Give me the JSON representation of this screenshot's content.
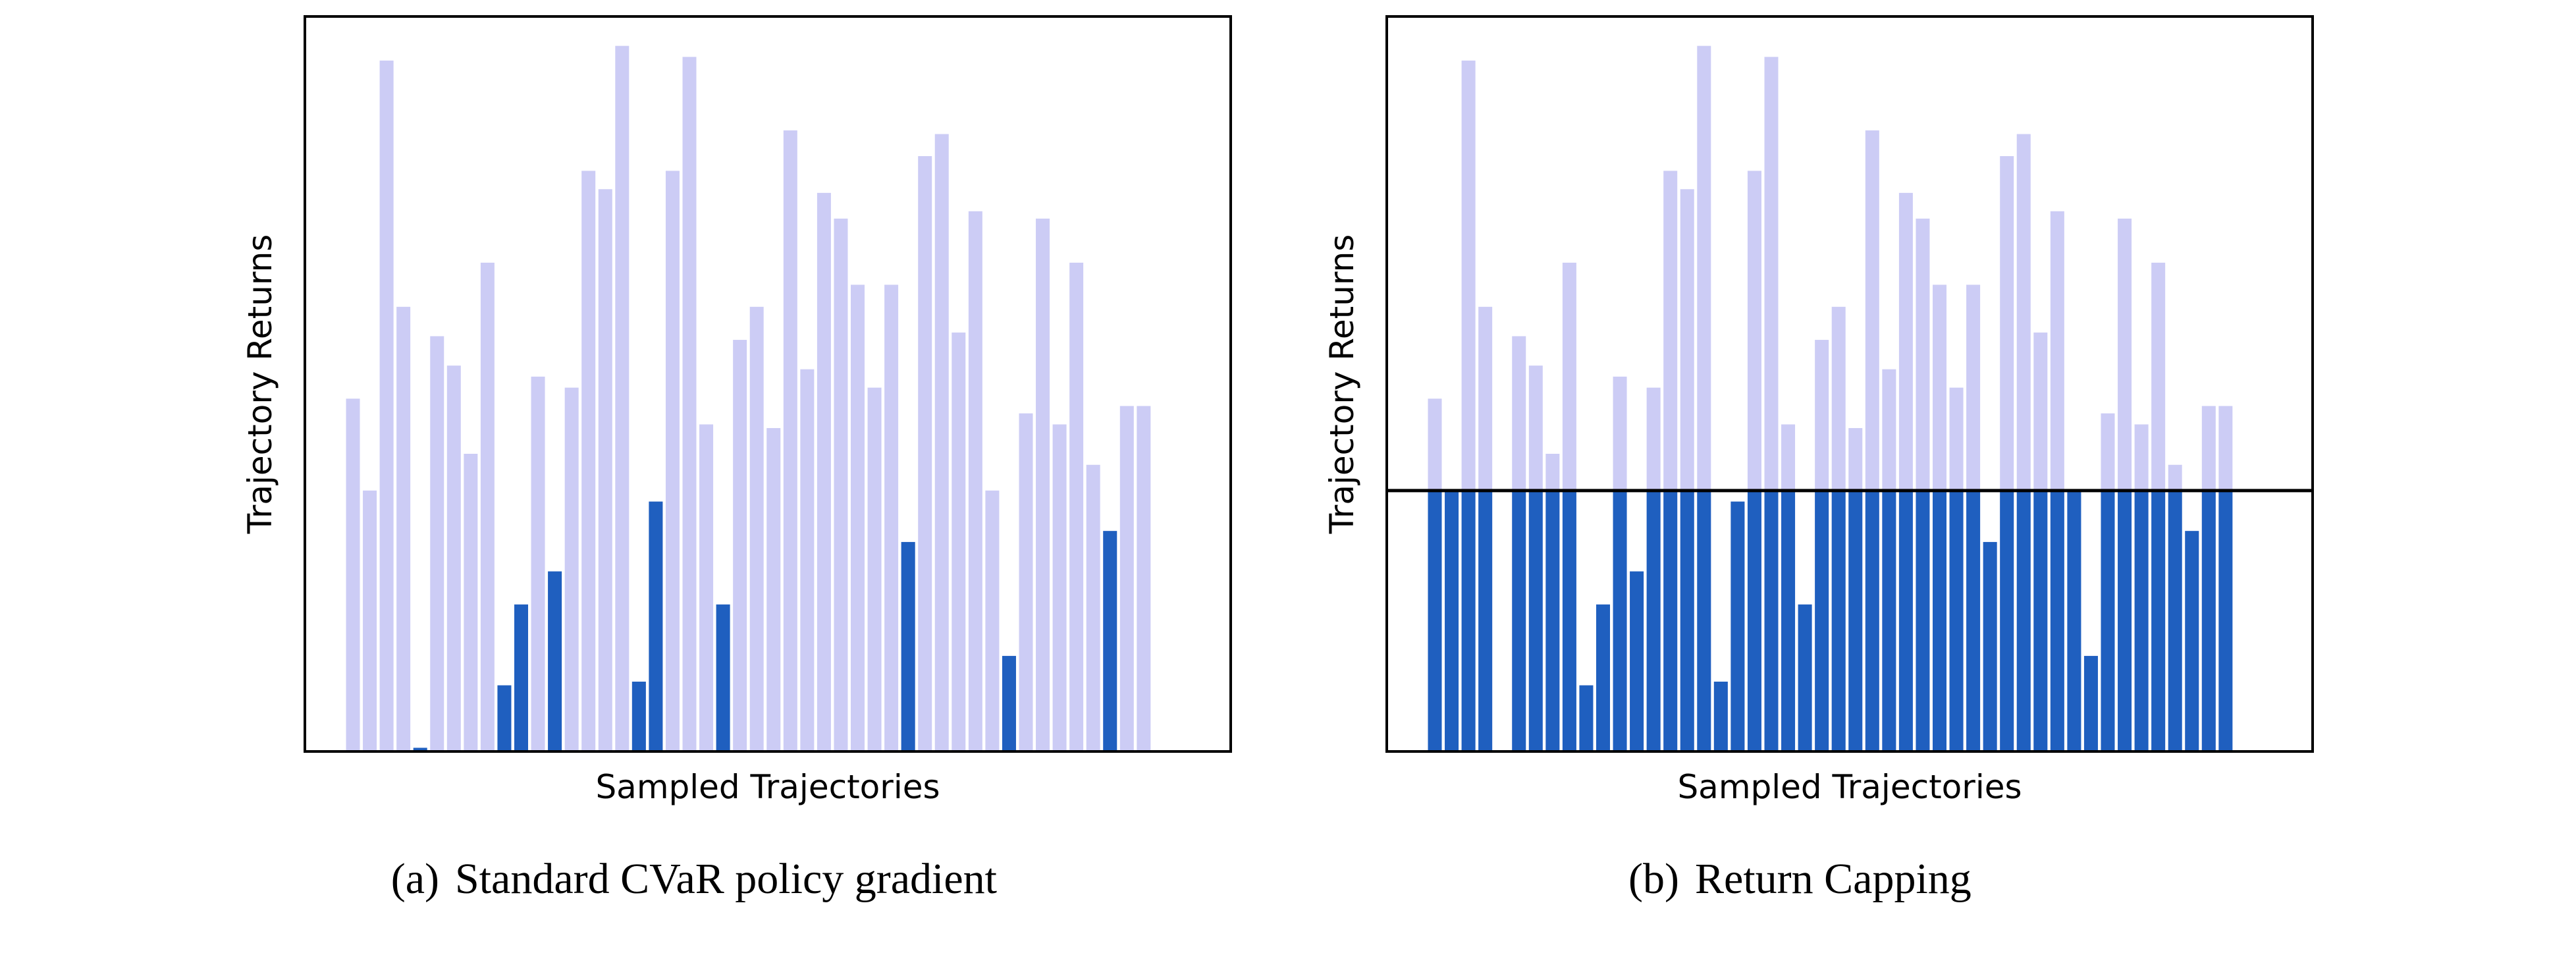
{
  "colors": {
    "background": "#ffffff",
    "light_bar": "#ccccf5",
    "dark_bar": "#1f5fbf",
    "axis": "#000000"
  },
  "chart_data": [
    {
      "type": "bar",
      "caption_label": "(a)",
      "caption": "Standard CVaR policy gradient",
      "xlabel": "Sampled Trajectories",
      "ylabel": "Trajectory Returns",
      "x_ticks": "none",
      "y_ticks": "none",
      "grid": false,
      "ylim": [
        0,
        1.0
      ],
      "series": [
        {
          "values": [
            0.48,
            0.355,
            0.94,
            0.605,
            0.0,
            0.565,
            0.525,
            0.405,
            0.665,
            0.09,
            0.2,
            0.51,
            0.245,
            0.495,
            0.79,
            0.765,
            0.96,
            0.095,
            0.34,
            0.79,
            0.945,
            0.445,
            0.2,
            0.56,
            0.605,
            0.44,
            0.845,
            0.52,
            0.76,
            0.725,
            0.635,
            0.495,
            0.635,
            0.285,
            0.81,
            0.84,
            0.57,
            0.735,
            0.355,
            0.13,
            0.46,
            0.725,
            0.445,
            0.665,
            0.39,
            0.3,
            0.47,
            0.47
          ]
        },
        {
          "values": [
            0,
            0,
            0,
            0,
            0.005,
            0,
            0,
            0,
            0,
            0.09,
            0.2,
            0,
            0.245,
            0,
            0,
            0,
            0,
            0.095,
            0.34,
            0,
            0,
            0,
            0.2,
            0,
            0,
            0,
            0,
            0,
            0,
            0,
            0,
            0,
            0,
            0.285,
            0,
            0,
            0,
            0,
            0,
            0.13,
            0,
            0,
            0,
            0,
            0,
            0.3,
            0,
            0
          ]
        }
      ]
    },
    {
      "type": "bar",
      "caption_label": "(b)",
      "caption": "Return Capping",
      "xlabel": "Sampled Trajectories",
      "ylabel": "Trajectory Returns",
      "x_ticks": "none",
      "y_ticks": "none",
      "grid": false,
      "ylim": [
        0,
        1.0
      ],
      "cap_line": 0.355,
      "series": [
        {
          "values": [
            0.48,
            0.355,
            0.94,
            0.605,
            0.0,
            0.565,
            0.525,
            0.405,
            0.665,
            0.09,
            0.2,
            0.51,
            0.245,
            0.495,
            0.79,
            0.765,
            0.96,
            0.095,
            0.34,
            0.79,
            0.945,
            0.445,
            0.2,
            0.56,
            0.605,
            0.44,
            0.845,
            0.52,
            0.76,
            0.725,
            0.635,
            0.495,
            0.635,
            0.285,
            0.81,
            0.84,
            0.57,
            0.735,
            0.355,
            0.13,
            0.46,
            0.725,
            0.445,
            0.665,
            0.39,
            0.3,
            0.47,
            0.47
          ]
        },
        {
          "values": [
            0.355,
            0.355,
            0.355,
            0.355,
            0.0,
            0.355,
            0.355,
            0.355,
            0.355,
            0.09,
            0.2,
            0.355,
            0.245,
            0.355,
            0.355,
            0.355,
            0.355,
            0.095,
            0.34,
            0.355,
            0.355,
            0.355,
            0.2,
            0.355,
            0.355,
            0.355,
            0.355,
            0.355,
            0.355,
            0.355,
            0.355,
            0.355,
            0.355,
            0.285,
            0.355,
            0.355,
            0.355,
            0.355,
            0.355,
            0.13,
            0.355,
            0.355,
            0.355,
            0.355,
            0.355,
            0.3,
            0.355,
            0.355
          ]
        }
      ]
    }
  ]
}
